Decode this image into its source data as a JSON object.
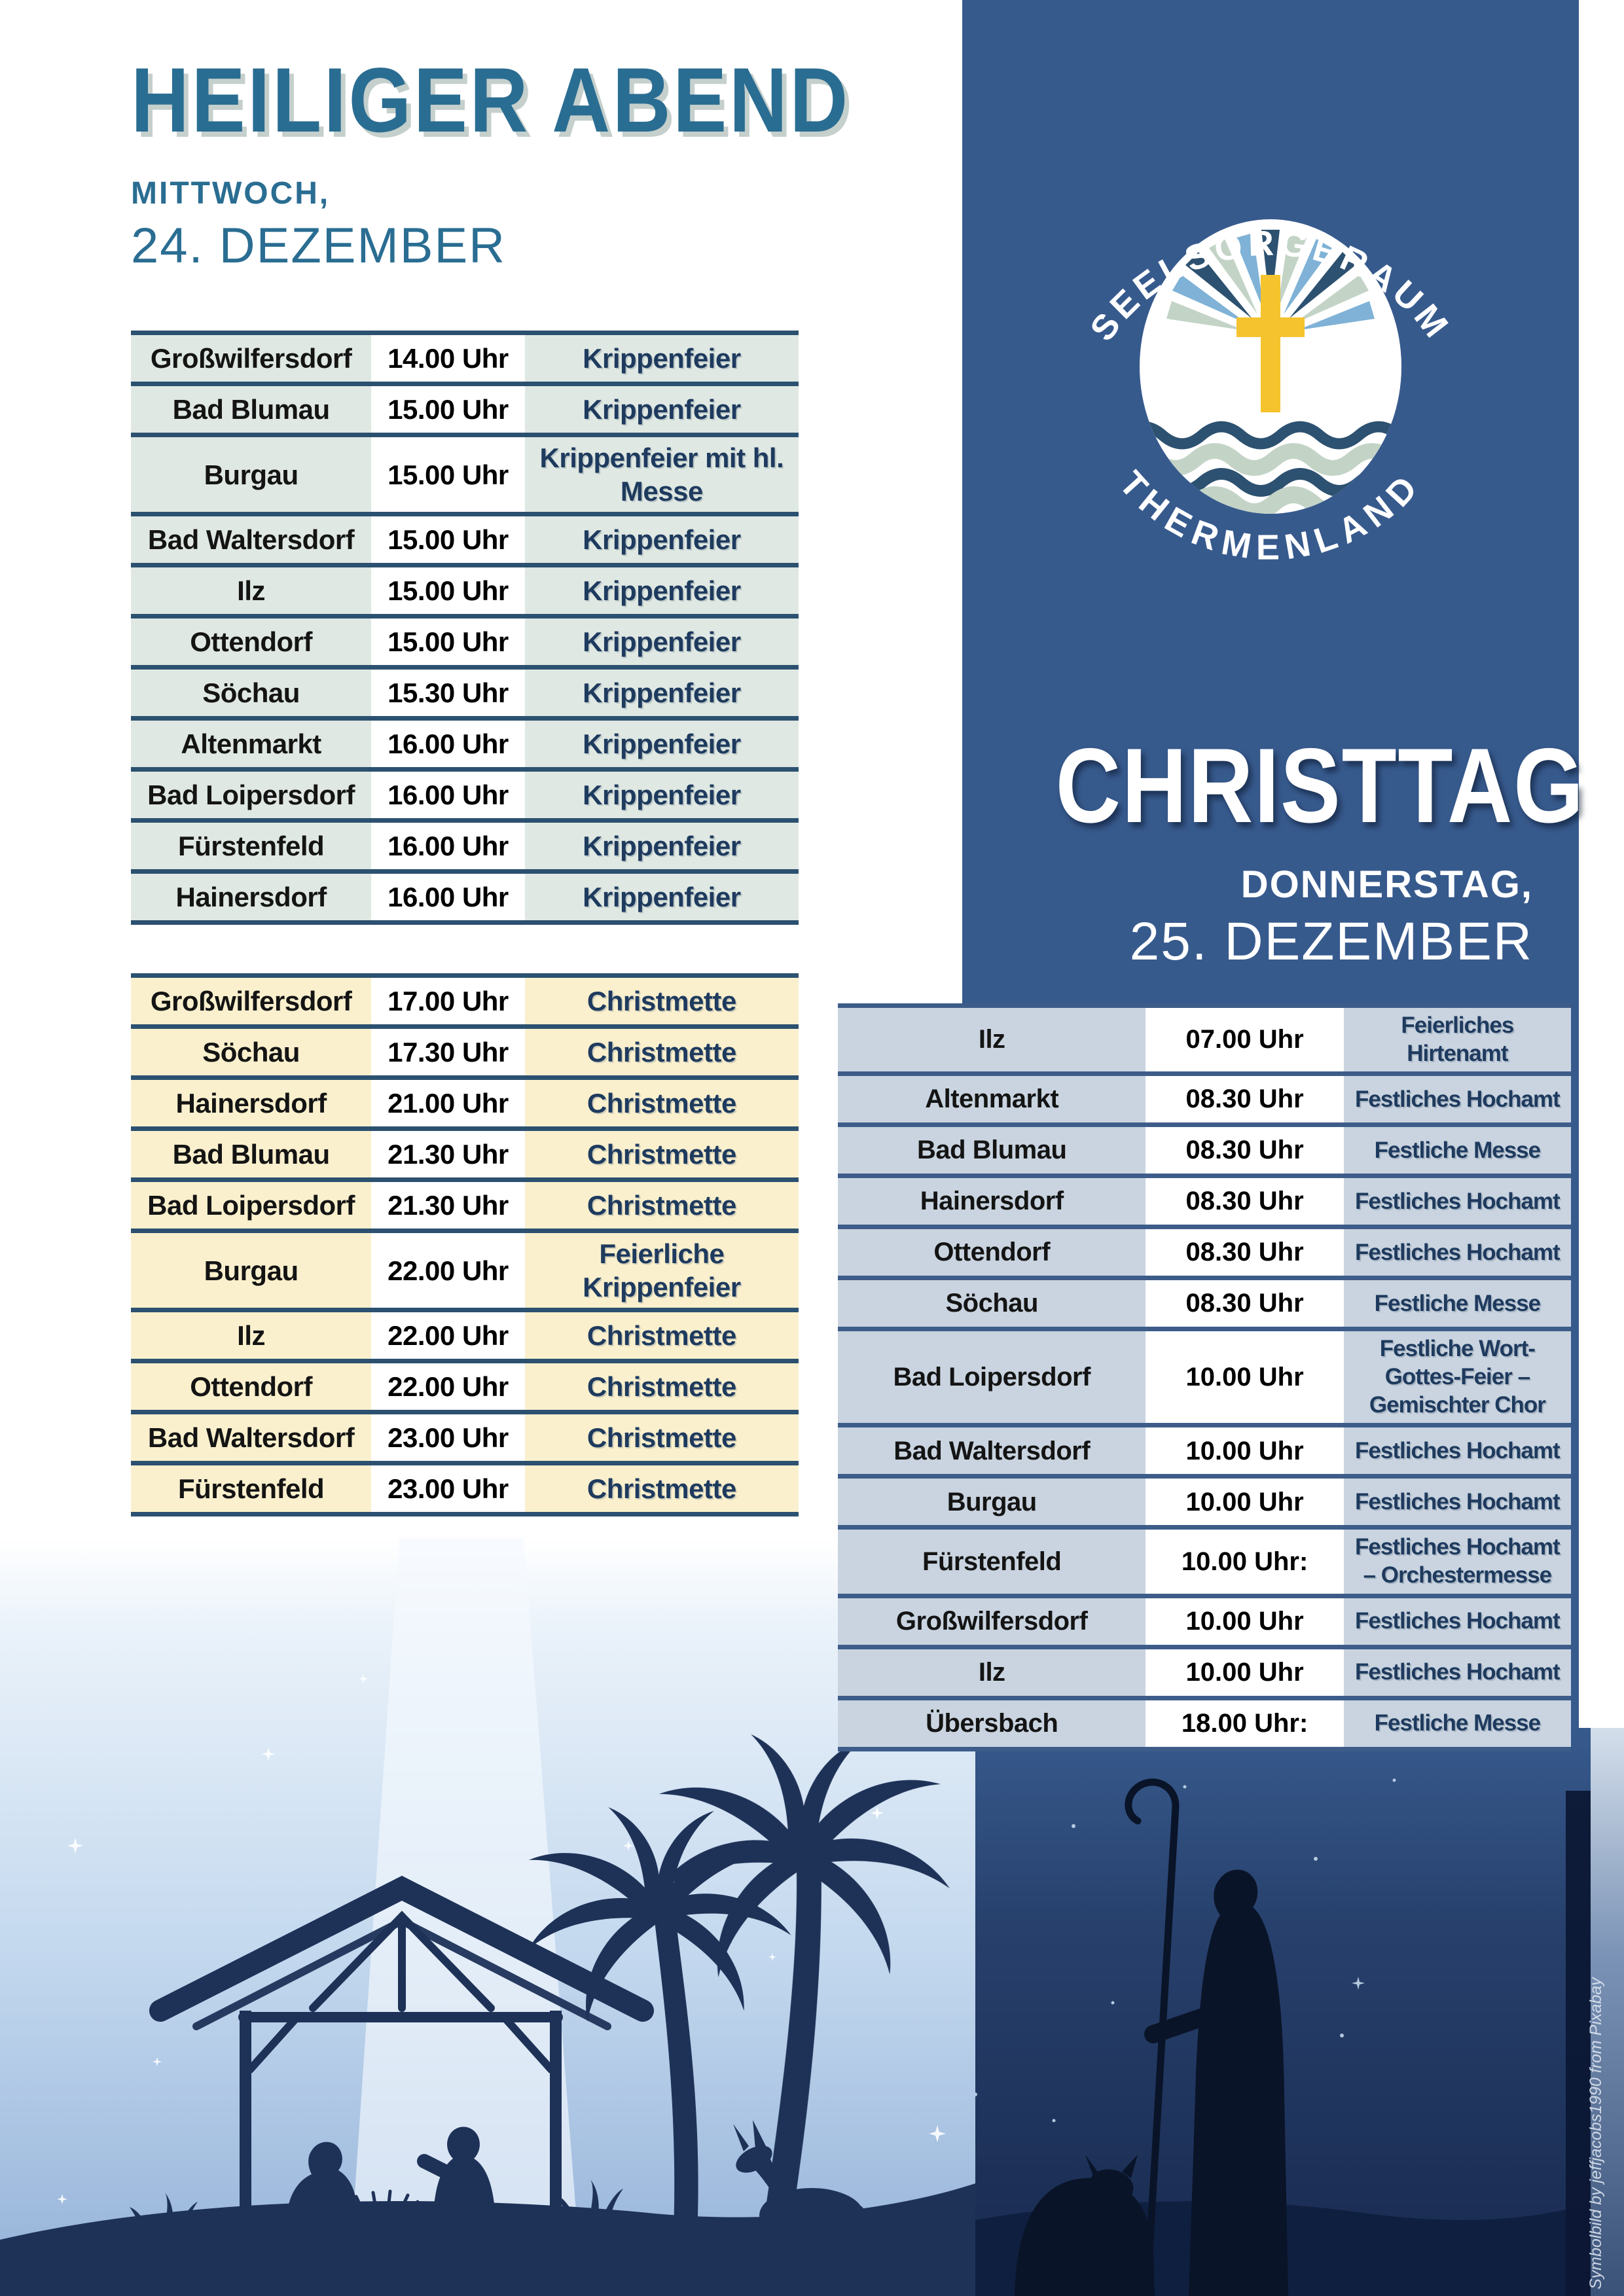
{
  "poster": {
    "credit": "Symbolbild by jeffjacobs1990 from Pixabay",
    "left": {
      "title": "HEILIGER ABEND",
      "date_line1": "MITTWOCH,",
      "date_line2": "24. DEZEMBER",
      "krippenfeier_table": {
        "rows": [
          [
            "Großwilfersdorf",
            "14.00 Uhr",
            "Krippenfeier"
          ],
          [
            "Bad Blumau",
            "15.00 Uhr",
            "Krippenfeier"
          ],
          [
            "Burgau",
            "15.00 Uhr",
            "Krippenfeier mit hl. Messe"
          ],
          [
            "Bad Waltersdorf",
            "15.00 Uhr",
            "Krippenfeier"
          ],
          [
            "Ilz",
            "15.00 Uhr",
            "Krippenfeier"
          ],
          [
            "Ottendorf",
            "15.00 Uhr",
            "Krippenfeier"
          ],
          [
            "Söchau",
            "15.30 Uhr",
            "Krippenfeier"
          ],
          [
            "Altenmarkt",
            "16.00 Uhr",
            "Krippenfeier"
          ],
          [
            "Bad Loipersdorf",
            "16.00 Uhr",
            "Krippenfeier"
          ],
          [
            "Fürstenfeld",
            "16.00 Uhr",
            "Krippenfeier"
          ],
          [
            "Hainersdorf",
            "16.00 Uhr",
            "Krippenfeier"
          ]
        ]
      },
      "christmette_table": {
        "rows": [
          [
            "Großwilfersdorf",
            "17.00 Uhr",
            "Christmette"
          ],
          [
            "Söchau",
            "17.30 Uhr",
            "Christmette"
          ],
          [
            "Hainersdorf",
            "21.00 Uhr",
            "Christmette"
          ],
          [
            "Bad Blumau",
            "21.30 Uhr",
            "Christmette"
          ],
          [
            "Bad Loipersdorf",
            "21.30 Uhr",
            "Christmette"
          ],
          [
            "Burgau",
            "22.00 Uhr",
            "Feierliche Krippenfeier"
          ],
          [
            "Ilz",
            "22.00 Uhr",
            "Christmette"
          ],
          [
            "Ottendorf",
            "22.00 Uhr",
            "Christmette"
          ],
          [
            "Bad Waltersdorf",
            "23.00 Uhr",
            "Christmette"
          ],
          [
            "Fürstenfeld",
            "23.00 Uhr",
            "Christmette"
          ]
        ]
      }
    },
    "right": {
      "logo": {
        "arc_top": "SEELSORGERAUM",
        "arc_bottom": "THERMENLAND"
      },
      "title": "CHRISTTAG",
      "date_line1": "DONNERSTAG,",
      "date_line2": "25. DEZEMBER",
      "services_table": {
        "rows": [
          [
            "Ilz",
            "07.00 Uhr",
            "Feierliches Hirtenamt"
          ],
          [
            "Altenmarkt",
            "08.30 Uhr",
            "Festliches Hochamt"
          ],
          [
            "Bad Blumau",
            "08.30 Uhr",
            "Festliche Messe"
          ],
          [
            "Hainersdorf",
            "08.30 Uhr",
            "Festliches Hochamt"
          ],
          [
            "Ottendorf",
            "08.30 Uhr",
            "Festliches Hochamt"
          ],
          [
            "Söchau",
            "08.30 Uhr",
            "Festliche Messe"
          ],
          [
            "Bad Loipersdorf",
            "10.00 Uhr",
            "Festliche Wort-Gottes-Feier – Gemischter Chor"
          ],
          [
            "Bad Waltersdorf",
            "10.00 Uhr",
            "Festliches Hochamt"
          ],
          [
            "Burgau",
            "10.00 Uhr",
            "Festliches Hochamt"
          ],
          [
            "Fürstenfeld",
            "10.00 Uhr:",
            "Festliches Hochamt – Orchestermesse"
          ],
          [
            "Großwilfersdorf",
            "10.00 Uhr",
            "Festliches Hochamt"
          ],
          [
            "Ilz",
            "10.00 Uhr",
            "Festliches Hochamt"
          ],
          [
            "Übersbach",
            "18.00 Uhr:",
            "Festliche Messe"
          ]
        ]
      }
    },
    "colors": {
      "panel-blue": "#375a8d",
      "title-blue": "#2a6d92",
      "line-dark": "#2c5170",
      "line-light": "#3d5c89",
      "mint": "#dfe8e2",
      "cream": "#faf0cd",
      "bluegray": "#c9d4e0",
      "navy-text": "#1e3a5e",
      "place-black": "#141414",
      "gold": "#f5c32d",
      "sil-navy": "#1e3258",
      "night-dark": "#0a1428"
    }
  }
}
